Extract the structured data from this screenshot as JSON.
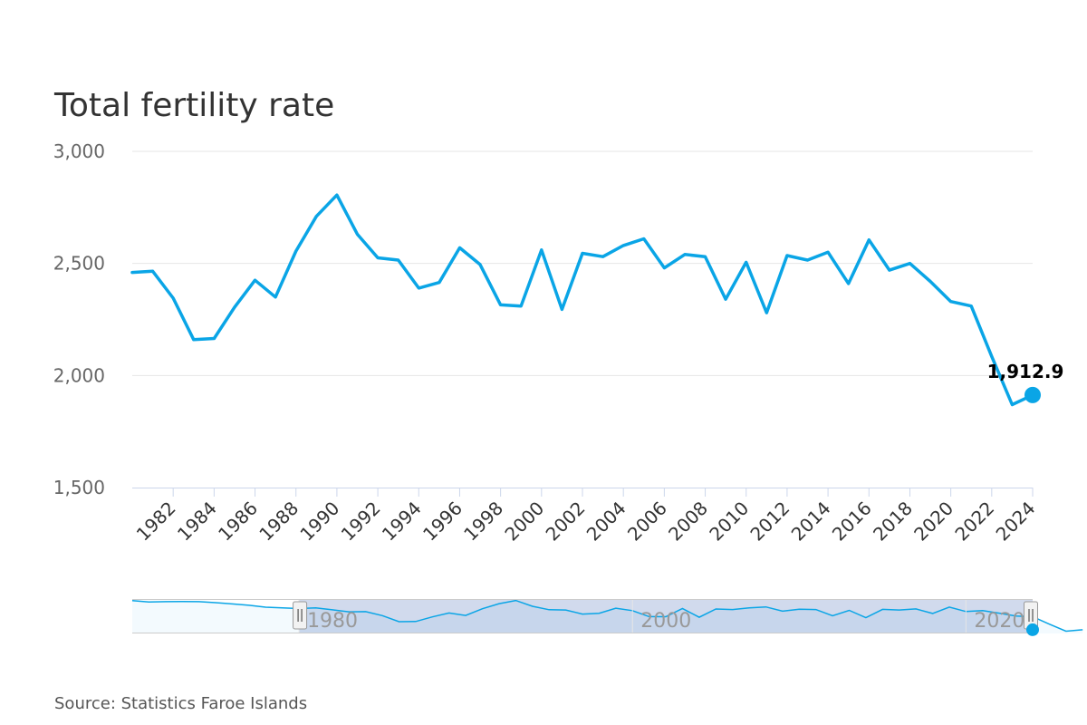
{
  "chart_data": {
    "type": "line",
    "title": "Total fertility rate",
    "source": "Source: Statistics Faroe Islands",
    "xlabel": "",
    "ylabel": "",
    "ylim": [
      1500,
      3000
    ],
    "y_ticks": [
      1500,
      2000,
      2500,
      3000
    ],
    "y_tick_labels": [
      "1,500",
      "2,000",
      "2,500",
      "3,000"
    ],
    "x_ticks": [
      1982,
      1984,
      1986,
      1988,
      1990,
      1992,
      1994,
      1996,
      1998,
      2000,
      2002,
      2004,
      2006,
      2008,
      2010,
      2012,
      2014,
      2016,
      2018,
      2020,
      2022,
      2024
    ],
    "x_range": [
      1980,
      2024
    ],
    "series": [
      {
        "name": "Total fertility rate",
        "color": "#0aa5e6",
        "x": [
          1980,
          1981,
          1982,
          1983,
          1984,
          1985,
          1986,
          1987,
          1988,
          1989,
          1990,
          1991,
          1992,
          1993,
          1994,
          1995,
          1996,
          1997,
          1998,
          1999,
          2000,
          2001,
          2002,
          2003,
          2004,
          2005,
          2006,
          2007,
          2008,
          2009,
          2010,
          2011,
          2012,
          2013,
          2014,
          2015,
          2016,
          2017,
          2018,
          2019,
          2020,
          2021,
          2022,
          2023,
          2024
        ],
        "values": [
          2460,
          2465,
          2345,
          2160,
          2165,
          2305,
          2425,
          2350,
          2555,
          2710,
          2805,
          2630,
          2525,
          2515,
          2390,
          2415,
          2570,
          2495,
          2315,
          2310,
          2560,
          2295,
          2545,
          2530,
          2580,
          2610,
          2480,
          2540,
          2530,
          2340,
          2505,
          2280,
          2535,
          2515,
          2550,
          2410,
          2605,
          2470,
          2500,
          2420,
          2330,
          2310,
          2085,
          1870,
          1912.9
        ]
      }
    ],
    "last_point_label": "1,912.9",
    "navigator": {
      "x_range": [
        1970,
        2024
      ],
      "labels": [
        "1980",
        "2000",
        "2020"
      ],
      "label_years": [
        1980,
        2000,
        2020
      ],
      "selected_range": [
        1980,
        2024
      ],
      "series_values": [
        2800,
        2760,
        2770,
        2775,
        2770,
        2740,
        2700,
        2660,
        2600,
        2580,
        2560,
        2580,
        2520,
        2460,
        2465,
        2345,
        2160,
        2165,
        2305,
        2425,
        2350,
        2555,
        2710,
        2805,
        2630,
        2525,
        2515,
        2390,
        2415,
        2570,
        2495,
        2315,
        2310,
        2560,
        2295,
        2545,
        2530,
        2580,
        2610,
        2480,
        2540,
        2530,
        2340,
        2505,
        2280,
        2535,
        2515,
        2550,
        2410,
        2605,
        2470,
        2500,
        2420,
        2330,
        2310,
        2085,
        1870,
        1912.9
      ]
    }
  }
}
